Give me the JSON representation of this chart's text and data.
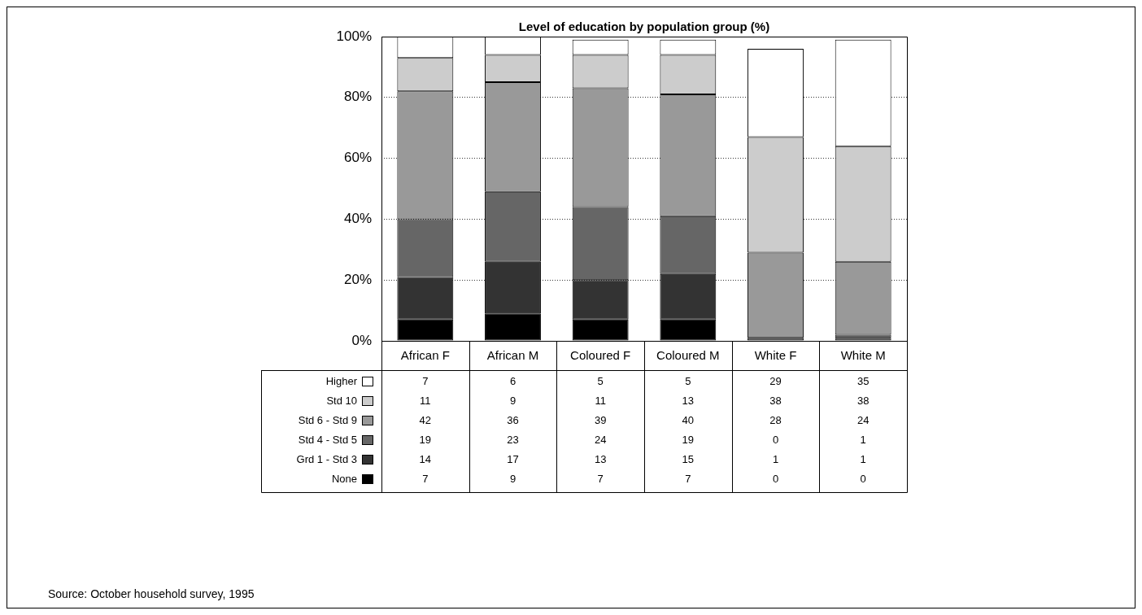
{
  "chart_data": {
    "type": "bar",
    "title": "Level of education by population group (%)",
    "categories": [
      "African F",
      "African M",
      "Coloured F",
      "Coloured M",
      "White F",
      "White M"
    ],
    "stacked": true,
    "ylim": [
      0,
      100
    ],
    "yticks": [
      {
        "value": 0,
        "label": "0%"
      },
      {
        "value": 20,
        "label": "20%"
      },
      {
        "value": 40,
        "label": "40%"
      },
      {
        "value": 60,
        "label": "60%"
      },
      {
        "value": 80,
        "label": "80%"
      },
      {
        "value": 100,
        "label": "100%"
      }
    ],
    "grid": "y",
    "legend": "bottom left",
    "data_labels": true,
    "series": [
      {
        "name": "None",
        "color": "#000000",
        "values": [
          7,
          9,
          7,
          7,
          0,
          0
        ]
      },
      {
        "name": "Grd 1 - Std 3",
        "color": "#333333",
        "values": [
          14,
          17,
          13,
          15,
          1,
          1
        ]
      },
      {
        "name": "Std 4 - Std 5",
        "color": "#666666",
        "values": [
          19,
          23,
          24,
          19,
          0,
          1
        ]
      },
      {
        "name": "Std 6 - Std 9",
        "color": "#999999",
        "values": [
          42,
          36,
          39,
          40,
          28,
          24
        ]
      },
      {
        "name": "Std 10",
        "color": "#cccccc",
        "values": [
          11,
          9,
          11,
          13,
          38,
          38
        ]
      },
      {
        "name": "Higher",
        "color": "#ffffff",
        "values": [
          7,
          6,
          5,
          5,
          29,
          35
        ]
      }
    ],
    "annotations": [
      "Source: October household survey, 1995"
    ]
  }
}
